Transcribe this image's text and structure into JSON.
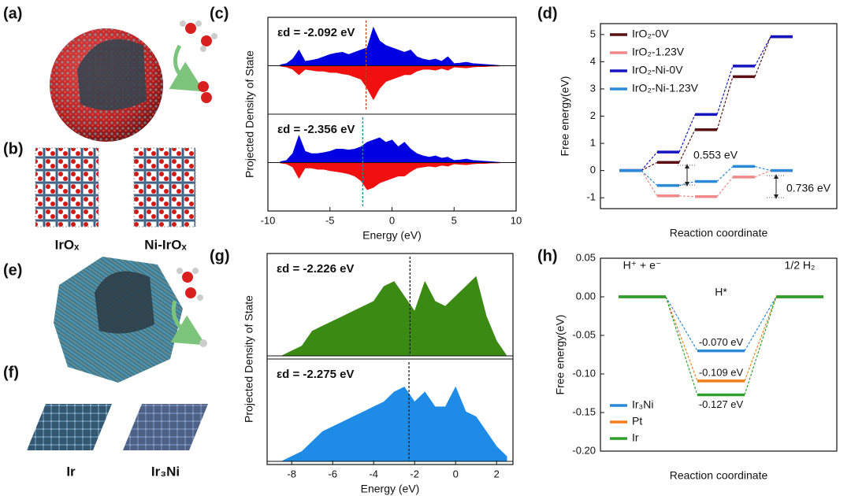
{
  "figure": {
    "panel_labels": [
      "(a)",
      "(b)",
      "(c)",
      "(d)",
      "(e)",
      "(f)",
      "(g)",
      "(h)"
    ],
    "structure_labels": [
      "IrOₓ",
      "Ni-IrOₓ",
      "Ir",
      "Ir₃Ni"
    ]
  },
  "chart_data": [
    {
      "type": "area",
      "xlabel": "Energy (eV)",
      "ylabel": "Projected Density of State",
      "xlim": [
        -10,
        10
      ],
      "xticks": [
        -10,
        -5,
        0,
        5,
        10
      ],
      "x": [
        -9,
        -8.5,
        -8,
        -7.5,
        -7,
        -6.5,
        -6,
        -5.5,
        -5,
        -4.5,
        -4,
        -3.5,
        -3,
        -2.5,
        -2,
        -1.5,
        -1,
        -0.5,
        0,
        0.5,
        1,
        1.5,
        2,
        2.5,
        3,
        3.5,
        4,
        4.5,
        5,
        5.5,
        6,
        6.5,
        7,
        7.5,
        8,
        8.5,
        9
      ],
      "subplots": [
        {
          "annotation": "εd = -2.092 eV",
          "label_color": "#b5451b",
          "d_band_center": -2.092,
          "line_color": "#b5451b",
          "ylim": [
            -1,
            1
          ],
          "series": [
            {
              "color": "#0000e0",
              "values": [
                0.02,
                0.05,
                0.15,
                0.35,
                0.1,
                0.12,
                0.15,
                0.2,
                0.25,
                0.28,
                0.3,
                0.25,
                0.3,
                0.35,
                0.4,
                0.85,
                0.55,
                0.45,
                0.4,
                0.35,
                0.3,
                0.35,
                0.2,
                0.15,
                0.12,
                0.15,
                0.1,
                0.2,
                0.05,
                0.06,
                0.08,
                0.05,
                0.04,
                0.03,
                0.02,
                0.01,
                0
              ]
            },
            {
              "color": "#f01010",
              "values": [
                -0.01,
                -0.03,
                -0.08,
                -0.2,
                -0.08,
                -0.1,
                -0.12,
                -0.12,
                -0.15,
                -0.15,
                -0.18,
                -0.2,
                -0.25,
                -0.3,
                -0.5,
                -0.75,
                -0.5,
                -0.35,
                -0.3,
                -0.25,
                -0.2,
                -0.2,
                -0.12,
                -0.08,
                -0.08,
                -0.1,
                -0.06,
                -0.1,
                -0.03,
                -0.04,
                -0.05,
                -0.03,
                -0.02,
                -0.02,
                -0.01,
                -0.01,
                0
              ]
            }
          ]
        },
        {
          "annotation": "εd = -2.356 eV",
          "label_color": "#2a8ad8",
          "d_band_center": -2.356,
          "line_color": "#1a8a9a",
          "ylim": [
            -1,
            1
          ],
          "series": [
            {
              "color": "#0000e0",
              "values": [
                0.02,
                0.05,
                0.2,
                0.6,
                0.25,
                0.2,
                0.2,
                0.22,
                0.25,
                0.3,
                0.3,
                0.28,
                0.3,
                0.35,
                0.45,
                0.5,
                0.55,
                0.45,
                0.5,
                0.35,
                0.45,
                0.3,
                0.2,
                0.15,
                0.12,
                0.15,
                0.1,
                0.12,
                0.05,
                0.06,
                0.08,
                0.05,
                0.04,
                0.03,
                0.02,
                0.01,
                0
              ]
            },
            {
              "color": "#f01010",
              "values": [
                -0.01,
                -0.03,
                -0.1,
                -0.35,
                -0.12,
                -0.12,
                -0.15,
                -0.15,
                -0.18,
                -0.2,
                -0.22,
                -0.25,
                -0.3,
                -0.4,
                -0.6,
                -0.55,
                -0.45,
                -0.4,
                -0.35,
                -0.3,
                -0.3,
                -0.2,
                -0.12,
                -0.1,
                -0.08,
                -0.1,
                -0.06,
                -0.08,
                -0.03,
                -0.04,
                -0.05,
                -0.03,
                -0.02,
                -0.02,
                -0.01,
                -0.01,
                0
              ]
            }
          ]
        }
      ]
    },
    {
      "type": "step",
      "xlabel": "Reaction coordinate",
      "ylabel": "Free energy(eV)",
      "ylim": [
        -1.4,
        5.4
      ],
      "yticks": [
        -1,
        0,
        1,
        2,
        3,
        4,
        5
      ],
      "legend": "upper left",
      "series": [
        {
          "name": "IrO₂-0V",
          "color": "#5a0f12",
          "values": [
            0,
            0.3,
            1.5,
            3.45,
            4.92
          ]
        },
        {
          "name": "IrO₂-1.23V",
          "color": "#f08a8a",
          "values": [
            0,
            -0.93,
            -0.96,
            -0.24,
            0
          ]
        },
        {
          "name": "IrO₂-Ni-0V",
          "color": "#1515c0",
          "values": [
            0,
            0.68,
            2.06,
            3.84,
            4.92
          ]
        },
        {
          "name": "IrO₂-Ni-1.23V",
          "color": "#2a8ad8",
          "values": [
            0,
            -0.55,
            -0.4,
            0.15,
            0
          ]
        }
      ],
      "annotations": [
        {
          "text": "0.553 eV",
          "color": "#222222"
        },
        {
          "text": "0.736 eV",
          "color": "#e0282b"
        }
      ]
    },
    {
      "type": "area",
      "xlabel": "Energy (eV)",
      "ylabel": "Projected Density of State",
      "xlim": [
        -9.2,
        2.8
      ],
      "xticks": [
        -8,
        -6,
        -4,
        -2,
        0,
        2
      ],
      "x": [
        -8.5,
        -8,
        -7.5,
        -7,
        -6.5,
        -6,
        -5.5,
        -5,
        -4.5,
        -4,
        -3.5,
        -3,
        -2.5,
        -2,
        -1.5,
        -1,
        -0.5,
        0,
        0.5,
        1,
        1.5,
        2,
        2.5
      ],
      "subplots": [
        {
          "annotation": "εd = -2.226 eV",
          "label_color": "#2e8b1e",
          "d_band_center": -2.226,
          "line_color": "#222222",
          "ylim": [
            0,
            1
          ],
          "series": [
            {
              "color": "#3a8a14",
              "values": [
                0,
                0.05,
                0.1,
                0.25,
                0.3,
                0.35,
                0.4,
                0.45,
                0.5,
                0.55,
                0.7,
                0.75,
                0.6,
                0.45,
                0.75,
                0.55,
                0.5,
                0.6,
                0.7,
                0.8,
                0.4,
                0.15,
                0
              ]
            }
          ]
        },
        {
          "annotation": "εd = -2.275 eV",
          "label_color": "#2a8ad8",
          "d_band_center": -2.275,
          "line_color": "#222222",
          "ylim": [
            0,
            1
          ],
          "series": [
            {
              "color": "#1e8ce6",
              "values": [
                0,
                0.05,
                0.1,
                0.2,
                0.3,
                0.35,
                0.4,
                0.45,
                0.5,
                0.55,
                0.6,
                0.7,
                0.75,
                0.6,
                0.7,
                0.55,
                0.55,
                0.75,
                0.5,
                0.45,
                0.3,
                0.15,
                0.05
              ]
            }
          ]
        }
      ]
    },
    {
      "type": "step",
      "xlabel": "Reaction coordinate",
      "ylabel": "Free energy(eV)",
      "ylim": [
        -0.2,
        0.05
      ],
      "yticks": [
        0.05,
        {
          "value": 0,
          "label": "0.00"
        },
        -0.05,
        {
          "value": -0.1,
          "label": "-0.10"
        },
        -0.15,
        {
          "value": -0.2,
          "label": "-0.20"
        }
      ],
      "legend": "lower left",
      "state_labels": [
        "H⁺ + e⁻",
        "H*",
        "1/2 H₂"
      ],
      "series": [
        {
          "name": "Ir₃Ni",
          "color": "#2a8ad8",
          "values": [
            0,
            -0.07,
            0
          ],
          "value_labels": [
            null,
            "-0.070 eV",
            null
          ]
        },
        {
          "name": "Pt",
          "color": "#f07f1b",
          "values": [
            0,
            -0.109,
            0
          ],
          "value_labels": [
            null,
            "-0.109 eV",
            null
          ]
        },
        {
          "name": "Ir",
          "color": "#2ca02c",
          "values": [
            0,
            -0.127,
            0
          ],
          "value_labels": [
            null,
            "-0.127 eV",
            null
          ]
        }
      ]
    }
  ]
}
